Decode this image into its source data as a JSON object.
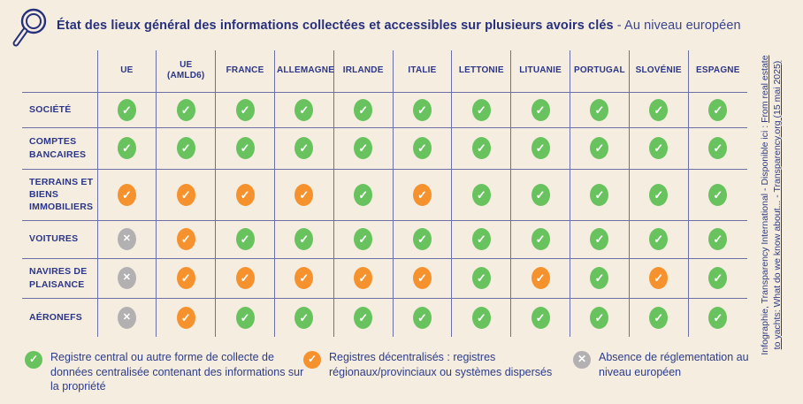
{
  "title": {
    "main": "État des lieux général des informations collectées et accessibles sur plusieurs avoirs clés",
    "suffix": "- Au niveau européen"
  },
  "chart_data": {
    "type": "table",
    "title": "État des lieux général des informations collectées et accessibles sur plusieurs avoirs clés - Au niveau européen",
    "columns": [
      "UE",
      "UE\n(AMLD6)",
      "FRANCE",
      "ALLEMAGNE",
      "IRLANDE",
      "ITALIE",
      "LETTONIE",
      "LITUANIE",
      "PORTUGAL",
      "SLOVÉNIE",
      "ESPAGNE"
    ],
    "rows": [
      {
        "label": "SOCIÉTÉ",
        "values": [
          "central",
          "central",
          "central",
          "central",
          "central",
          "central",
          "central",
          "central",
          "central",
          "central",
          "central"
        ]
      },
      {
        "label": "COMPTES BANCAIRES",
        "values": [
          "central",
          "central",
          "central",
          "central",
          "central",
          "central",
          "central",
          "central",
          "central",
          "central",
          "central"
        ]
      },
      {
        "label": "TERRAINS ET BIENS IMMOBILIERS",
        "values": [
          "decentralized",
          "decentralized",
          "decentralized",
          "decentralized",
          "central",
          "decentralized",
          "central",
          "central",
          "central",
          "central",
          "central"
        ]
      },
      {
        "label": "VOITURES",
        "values": [
          "none",
          "decentralized",
          "central",
          "central",
          "central",
          "central",
          "central",
          "central",
          "central",
          "central",
          "central"
        ]
      },
      {
        "label": "NAVIRES DE PLAISANCE",
        "values": [
          "none",
          "decentralized",
          "decentralized",
          "decentralized",
          "decentralized",
          "decentralized",
          "central",
          "decentralized",
          "central",
          "decentralized",
          "central"
        ]
      },
      {
        "label": "AÉRONEFS",
        "values": [
          "none",
          "decentralized",
          "central",
          "central",
          "central",
          "central",
          "central",
          "central",
          "central",
          "central",
          "central"
        ]
      }
    ],
    "value_legend": {
      "central": "Registre central ou autre forme de collecte de données centralisée contenant des informations sur la propriété",
      "decentralized": "Registres décentralisés : registres régionaux/provinciaux ou systèmes dispersés",
      "none": "Absence de réglementation au niveau européen"
    }
  },
  "legend": [
    {
      "key": "central",
      "icon": "green-check-icon",
      "text": "Registre central ou autre forme de collecte de données centralisée contenant des informations sur la propriété"
    },
    {
      "key": "decentralized",
      "icon": "orange-check-icon",
      "text": "Registres décentralisés : registres régionaux/provinciaux ou systèmes dispersés"
    },
    {
      "key": "none",
      "icon": "gray-x-icon",
      "text": "Absence de réglementation au niveau européen"
    }
  ],
  "icons": {
    "value_icon_map": {
      "central": "green-check",
      "decentralized": "orange-check",
      "none": "gray-x"
    },
    "check_glyph": "✓",
    "x_glyph": "✕",
    "magnifier": "magnifier-icon"
  },
  "colors": {
    "background": "#f5eddf",
    "navy": "#2c3689",
    "grid_line": "#6a70a6",
    "green": "#68c35e",
    "orange": "#f5922e",
    "gray": "#b2b0b0"
  },
  "credit": {
    "line1_text": "Infographie, Transparency International - Disponible ici : ",
    "line1_link": "From real estate",
    "line2_link": "to yachts: What do we know about... - Transparency.org (15 mai 2025)"
  }
}
